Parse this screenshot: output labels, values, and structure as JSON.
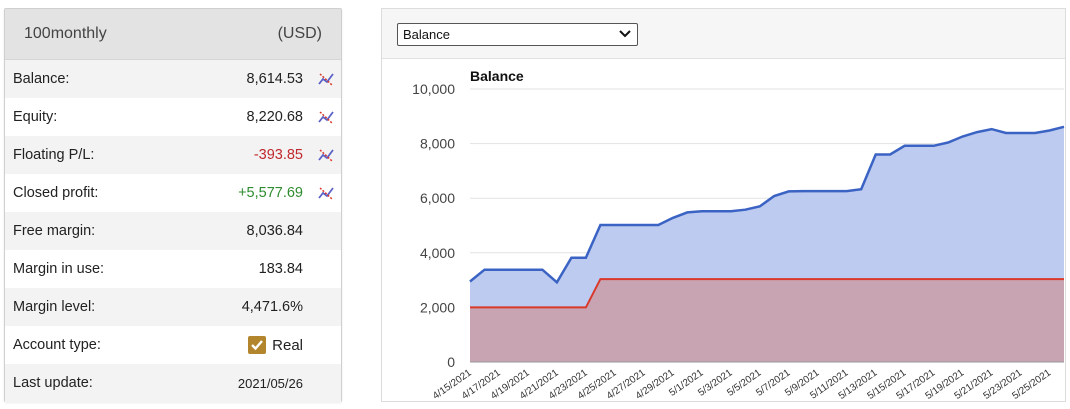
{
  "account": {
    "name": "100monthly",
    "currency": "(USD)",
    "rows": [
      {
        "label": "Balance:",
        "value": "8,614.53",
        "tone": "normal",
        "icon": "chart-line-icon"
      },
      {
        "label": "Equity:",
        "value": "8,220.68",
        "tone": "normal",
        "icon": "chart-line-icon"
      },
      {
        "label": "Floating P/L:",
        "value": "-393.85",
        "tone": "neg",
        "icon": "chart-line-icon"
      },
      {
        "label": "Closed profit:",
        "value": "+5,577.69",
        "tone": "pos",
        "icon": "chart-line-icon"
      },
      {
        "label": "Free margin:",
        "value": "8,036.84",
        "tone": "normal"
      },
      {
        "label": "Margin in use:",
        "value": "183.84",
        "tone": "normal"
      },
      {
        "label": "Margin level:",
        "value": "4,471.6%",
        "tone": "normal"
      },
      {
        "label": "Account type:",
        "value": "Real",
        "tone": "normal",
        "icon": "checkbox-checked-icon"
      },
      {
        "label": "Last update:",
        "value": "2021/05/26",
        "tone": "normal"
      }
    ]
  },
  "chart_selector": {
    "selected": "Balance"
  },
  "colors": {
    "balance_line": "#3b63c4",
    "balance_fill": "#b8c8ee",
    "deposit_line": "#d9382b",
    "deposit_fill": "#c9a0ab",
    "positive": "#2e8b2e",
    "negative": "#c0282d"
  },
  "chart_data": {
    "type": "area",
    "title": "Balance",
    "ylim": [
      0,
      10000
    ],
    "yticks": [
      "0",
      "2,000",
      "4,000",
      "6,000",
      "8,000",
      "10,000"
    ],
    "xticks": [
      "4/15/2021",
      "4/17/2021",
      "4/19/2021",
      "4/21/2021",
      "4/23/2021",
      "4/25/2021",
      "4/27/2021",
      "4/29/2021",
      "5/1/2021",
      "5/3/2021",
      "5/5/2021",
      "5/7/2021",
      "5/9/2021",
      "5/11/2021",
      "5/13/2021",
      "5/15/2021",
      "5/17/2021",
      "5/19/2021",
      "5/21/2021",
      "5/23/2021",
      "5/25/2021"
    ],
    "grid": true,
    "series": [
      {
        "values": [
          {
            "x": "4/15/2021",
            "y": 2950
          },
          {
            "x": "4/16/2021",
            "y": 3380
          },
          {
            "x": "4/17/2021",
            "y": 3380
          },
          {
            "x": "4/18/2021",
            "y": 3380
          },
          {
            "x": "4/19/2021",
            "y": 3380
          },
          {
            "x": "4/20/2021",
            "y": 3380
          },
          {
            "x": "4/21/2021",
            "y": 2920
          },
          {
            "x": "4/22/2021",
            "y": 3820
          },
          {
            "x": "4/23/2021",
            "y": 3820
          },
          {
            "x": "4/24/2021",
            "y": 5020
          },
          {
            "x": "4/25/2021",
            "y": 5020
          },
          {
            "x": "4/26/2021",
            "y": 5020
          },
          {
            "x": "4/27/2021",
            "y": 5020
          },
          {
            "x": "4/28/2021",
            "y": 5020
          },
          {
            "x": "4/29/2021",
            "y": 5280
          },
          {
            "x": "4/30/2021",
            "y": 5480
          },
          {
            "x": "5/1/2021",
            "y": 5520
          },
          {
            "x": "5/2/2021",
            "y": 5520
          },
          {
            "x": "5/3/2021",
            "y": 5520
          },
          {
            "x": "5/4/2021",
            "y": 5580
          },
          {
            "x": "5/5/2021",
            "y": 5700
          },
          {
            "x": "5/6/2021",
            "y": 6080
          },
          {
            "x": "5/7/2021",
            "y": 6250
          },
          {
            "x": "5/8/2021",
            "y": 6260
          },
          {
            "x": "5/9/2021",
            "y": 6260
          },
          {
            "x": "5/10/2021",
            "y": 6260
          },
          {
            "x": "5/11/2021",
            "y": 6260
          },
          {
            "x": "5/12/2021",
            "y": 6330
          },
          {
            "x": "5/13/2021",
            "y": 7600
          },
          {
            "x": "5/14/2021",
            "y": 7600
          },
          {
            "x": "5/15/2021",
            "y": 7920
          },
          {
            "x": "5/16/2021",
            "y": 7920
          },
          {
            "x": "5/17/2021",
            "y": 7920
          },
          {
            "x": "5/18/2021",
            "y": 8040
          },
          {
            "x": "5/19/2021",
            "y": 8260
          },
          {
            "x": "5/20/2021",
            "y": 8420
          },
          {
            "x": "5/21/2021",
            "y": 8530
          },
          {
            "x": "5/22/2021",
            "y": 8390
          },
          {
            "x": "5/23/2021",
            "y": 8390
          },
          {
            "x": "5/24/2021",
            "y": 8390
          },
          {
            "x": "5/25/2021",
            "y": 8480
          },
          {
            "x": "5/26/2021",
            "y": 8614.53
          }
        ]
      },
      {
        "values": [
          {
            "x": "4/15/2021",
            "y": 2000
          },
          {
            "x": "4/23/2021",
            "y": 2000
          },
          {
            "x": "4/24/2021",
            "y": 3036.84
          },
          {
            "x": "5/26/2021",
            "y": 3036.84
          }
        ]
      }
    ]
  }
}
